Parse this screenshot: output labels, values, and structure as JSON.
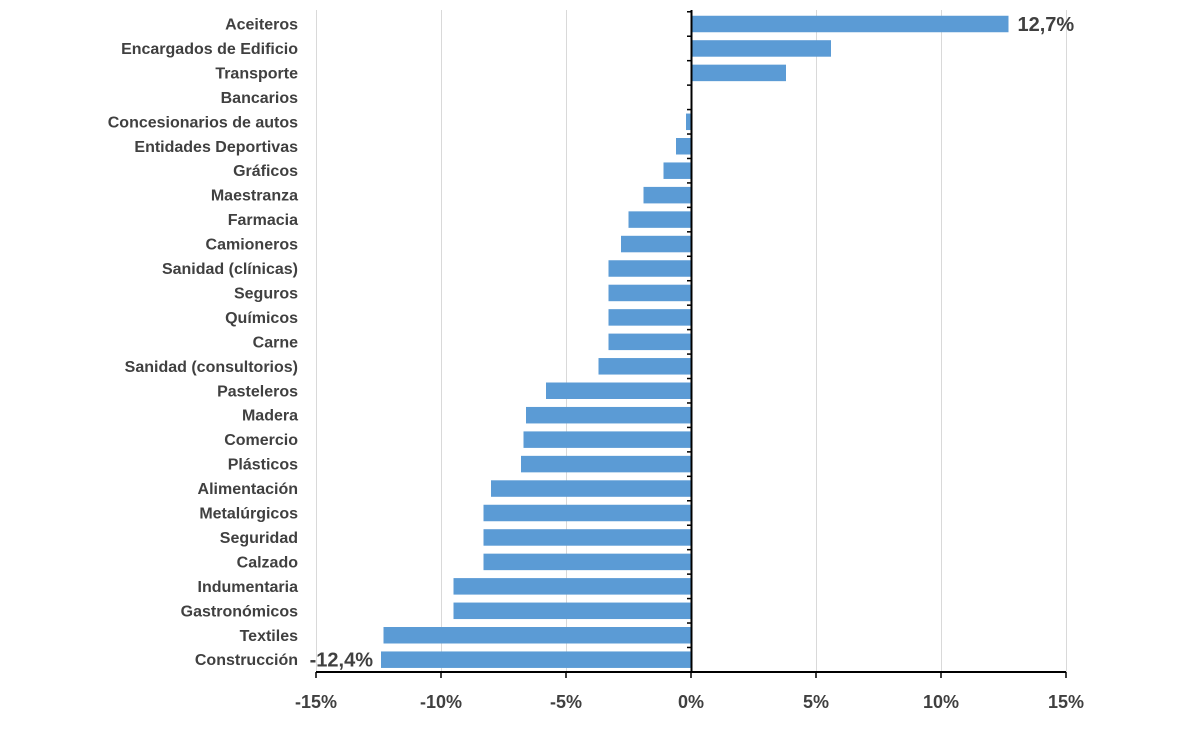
{
  "chart_data": {
    "type": "bar",
    "orientation": "horizontal",
    "title": "",
    "xlabel": "",
    "ylabel": "",
    "categories": [
      "Aceiteros",
      "Encargados de Edificio",
      "Transporte",
      "Bancarios",
      "Concesionarios de autos",
      "Entidades Deportivas",
      "Gráficos",
      "Maestranza",
      "Farmacia",
      "Camioneros",
      "Sanidad (clínicas)",
      "Seguros",
      "Químicos",
      "Carne",
      "Sanidad (consultorios)",
      "Pasteleros",
      "Madera",
      "Comercio",
      "Plásticos",
      "Alimentación",
      "Metalúrgicos",
      "Seguridad",
      "Calzado",
      "Indumentaria",
      "Gastronómicos",
      "Textiles",
      "Construcción"
    ],
    "values": [
      12.7,
      5.6,
      3.8,
      0.0,
      -0.2,
      -0.6,
      -1.1,
      -1.9,
      -2.5,
      -2.8,
      -3.3,
      -3.3,
      -3.3,
      -3.3,
      -3.7,
      -5.8,
      -6.6,
      -6.7,
      -6.8,
      -8.0,
      -8.3,
      -8.3,
      -8.3,
      -9.5,
      -9.5,
      -12.3,
      -12.4
    ],
    "xlim": [
      -15,
      15
    ],
    "xticks": [
      -15,
      -10,
      -5,
      0,
      5,
      10,
      15
    ],
    "tick_labels": [
      "-15%",
      "-10%",
      "-5%",
      "0%",
      "5%",
      "10%",
      "15%"
    ],
    "data_labels": [
      {
        "category": "Aceiteros",
        "text": "12,7%"
      },
      {
        "category": "Construcción",
        "text": "-12,4%"
      }
    ],
    "grid": "vertical",
    "legend": "none",
    "colors": {
      "bar": "#5b9bd5",
      "grid": "#d9d9d9",
      "axis": "#000000",
      "text": "#404040"
    }
  }
}
